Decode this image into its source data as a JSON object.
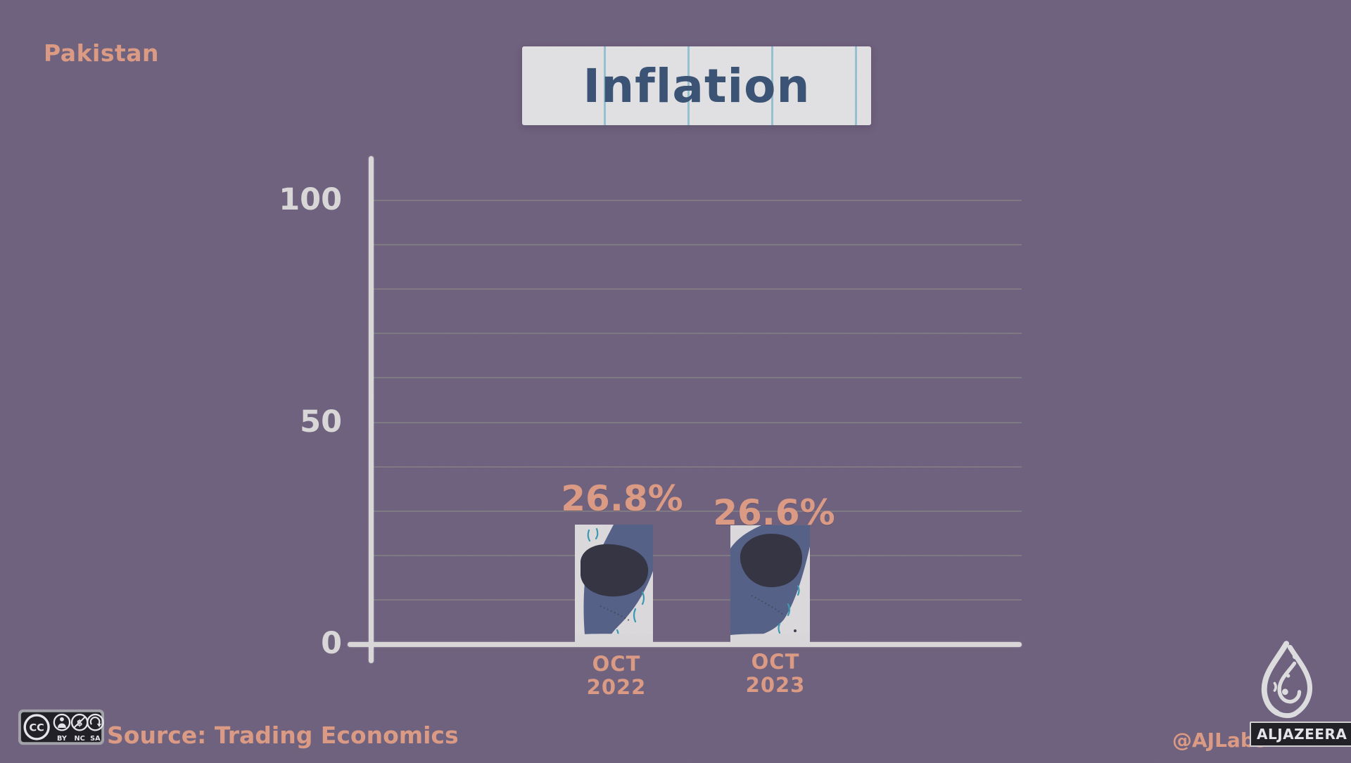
{
  "header": {
    "country_label": "Pakistan",
    "title": "Inflation"
  },
  "chart_data": {
    "type": "bar",
    "title": "Inflation",
    "subtitle_region": "Pakistan",
    "categories": [
      [
        "OCT",
        "2022"
      ],
      [
        "OCT",
        "2023"
      ]
    ],
    "values": [
      26.8,
      26.6
    ],
    "value_labels": [
      "26.8%",
      "26.6%"
    ],
    "unit": "%",
    "xlabel": "",
    "ylabel": "",
    "ylim": [
      0,
      110
    ],
    "yticks": [
      0,
      50,
      100
    ],
    "gridline_step": 10,
    "grid": "on",
    "legend": "none"
  },
  "footer": {
    "source_label": "Source: Trading Economics",
    "credit_handle": "@AJLabs",
    "brand_name": "ALJAZEERA",
    "license": {
      "cc": "CC",
      "labels": [
        "BY",
        "NC",
        "SA"
      ]
    }
  },
  "colors": {
    "background": "#6e5d78",
    "accent_orange": "#f4a47f",
    "title_blue": "#2d4a6c",
    "axis_white": "#f2efe9",
    "gridline_green": "#9fae8a",
    "bar_navy": "#4e5c83",
    "bar_blob": "#26262e",
    "bar_teal": "#2fa3b8"
  }
}
